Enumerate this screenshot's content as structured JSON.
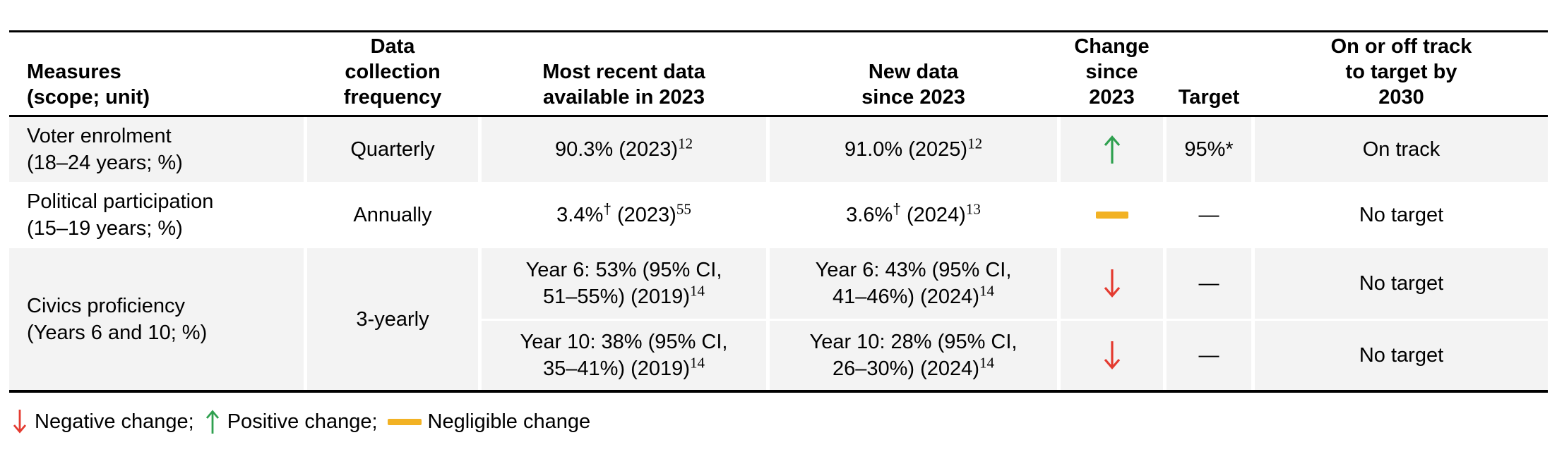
{
  "colors": {
    "positive": "#2fa04f",
    "negative": "#e43b30",
    "negligible": "#f2b224",
    "row_shade": "#f3f3f3",
    "rule": "#000000"
  },
  "table": {
    "headers": {
      "measures": "Measures\n(scope; unit)",
      "frequency": "Data\ncollection\nfrequency",
      "recent": "Most recent data\navailable in 2023",
      "new_data": "New data\nsince 2023",
      "change": "Change\nsince\n2023",
      "target": "Target",
      "track": "On or off track\nto target by\n2030"
    },
    "rows": [
      {
        "measure": "Voter enrolment\n(18–24 years; %)",
        "frequency": "Quarterly",
        "recent": [
          {
            "t": "90.3% (2023)"
          },
          {
            "sup": "12",
            "serif": true
          }
        ],
        "new_data": [
          {
            "t": "91.0% (2025)"
          },
          {
            "sup": "12",
            "serif": true
          }
        ],
        "change": "positive",
        "change_icon": "arrow-up",
        "target": "95%*",
        "track": "On track"
      },
      {
        "measure": "Political participation\n(15–19 years; %)",
        "frequency": "Annually",
        "recent": [
          {
            "t": "3.4%"
          },
          {
            "sup": "†"
          },
          {
            "t": " (2023)"
          },
          {
            "sup": "55",
            "serif": true
          }
        ],
        "new_data": [
          {
            "t": "3.6%"
          },
          {
            "sup": "†"
          },
          {
            "t": " (2024)"
          },
          {
            "sup": "13",
            "serif": true
          }
        ],
        "change": "negligible",
        "change_icon": "dash",
        "target": "—",
        "track": "No target"
      },
      {
        "measure": "Civics proficiency\n(Years 6 and 10; %)",
        "frequency": "3-yearly",
        "subrows": [
          {
            "recent": [
              {
                "t": "Year 6: 53% (95% CI,"
              },
              {
                "br": true
              },
              {
                "t": "51–55%) (2019)"
              },
              {
                "sup": "14",
                "serif": true
              }
            ],
            "new_data": [
              {
                "t": "Year 6: 43% (95% CI,"
              },
              {
                "br": true
              },
              {
                "t": "41–46%) (2024)"
              },
              {
                "sup": "14",
                "serif": true
              }
            ],
            "change": "negative",
            "change_icon": "arrow-down",
            "target": "—",
            "track": "No target"
          },
          {
            "recent": [
              {
                "t": "Year 10: 38% (95% CI,"
              },
              {
                "br": true
              },
              {
                "t": "35–41%) (2019)"
              },
              {
                "sup": "14",
                "serif": true
              }
            ],
            "new_data": [
              {
                "t": "Year 10: 28% (95% CI,"
              },
              {
                "br": true
              },
              {
                "t": "26–30%) (2024)"
              },
              {
                "sup": "14",
                "serif": true
              }
            ],
            "change": "negative",
            "change_icon": "arrow-down",
            "target": "—",
            "track": "No target"
          }
        ]
      }
    ]
  },
  "legend": {
    "items": [
      {
        "icon": "arrow-down",
        "label": "Negative change;"
      },
      {
        "icon": "arrow-up",
        "label": "Positive change;"
      },
      {
        "icon": "dash",
        "label": "Negligible change"
      }
    ]
  }
}
